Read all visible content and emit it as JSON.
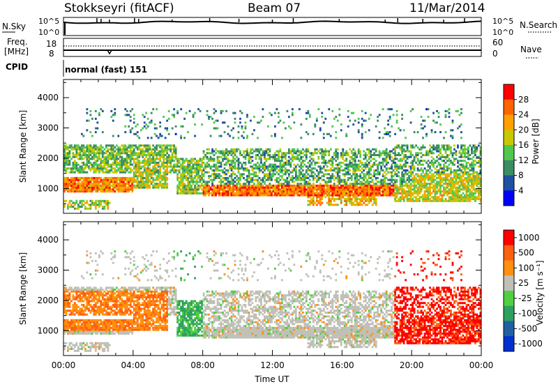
{
  "header": {
    "title": "Stokkseyri (fitACF)",
    "beam": "Beam 07",
    "date": "11/Mar/2014"
  },
  "top_panels": {
    "nsky_label": "N.Sky",
    "nsearch_label": "N.Search",
    "nsky_ticks": [
      "10^5",
      "10^0"
    ],
    "freq_label": "Freq.",
    "freq_unit": "[MHz]",
    "freq_ticks": [
      "18",
      "8"
    ],
    "nave_label": "Nave",
    "nave_ticks": [
      "60",
      "0"
    ],
    "cpid_label": "CPID",
    "cpid_value": "normal (fast) 151"
  },
  "colors": {
    "power_scale": [
      "#0000ff",
      "#2050a0",
      "#3c8c64",
      "#50c850",
      "#c8c800",
      "#ffa000",
      "#ff6400",
      "#ff0000"
    ],
    "velocity_scale": [
      "#0030d0",
      "#2060a0",
      "#30a060",
      "#50d040",
      "#c0c0b8",
      "#ff9010",
      "#ff6010",
      "#ff0000"
    ]
  },
  "chart_data": [
    {
      "type": "heatmap",
      "name": "power",
      "xlabel": "",
      "ylabel": "Slant Range [km]",
      "yticks": [
        "4000",
        "3000",
        "2000",
        "1000"
      ],
      "colorbar_label": "Power [dB]",
      "colorbar_ticks": [
        "28",
        "24",
        "20",
        "16",
        "12",
        "8",
        "4"
      ]
    },
    {
      "type": "heatmap",
      "name": "velocity",
      "xlabel": "Time UT",
      "ylabel": "Slant Range [km]",
      "yticks": [
        "4000",
        "3000",
        "2000",
        "1000"
      ],
      "xticks": [
        "00:00",
        "04:00",
        "08:00",
        "12:00",
        "16:00",
        "20:00",
        "00:00"
      ],
      "colorbar_label": "Velocity [m s⁻¹]",
      "colorbar_ticks": [
        "1000",
        "500",
        "100",
        "25",
        "-25",
        "-100",
        "-500",
        "-1000"
      ]
    }
  ]
}
